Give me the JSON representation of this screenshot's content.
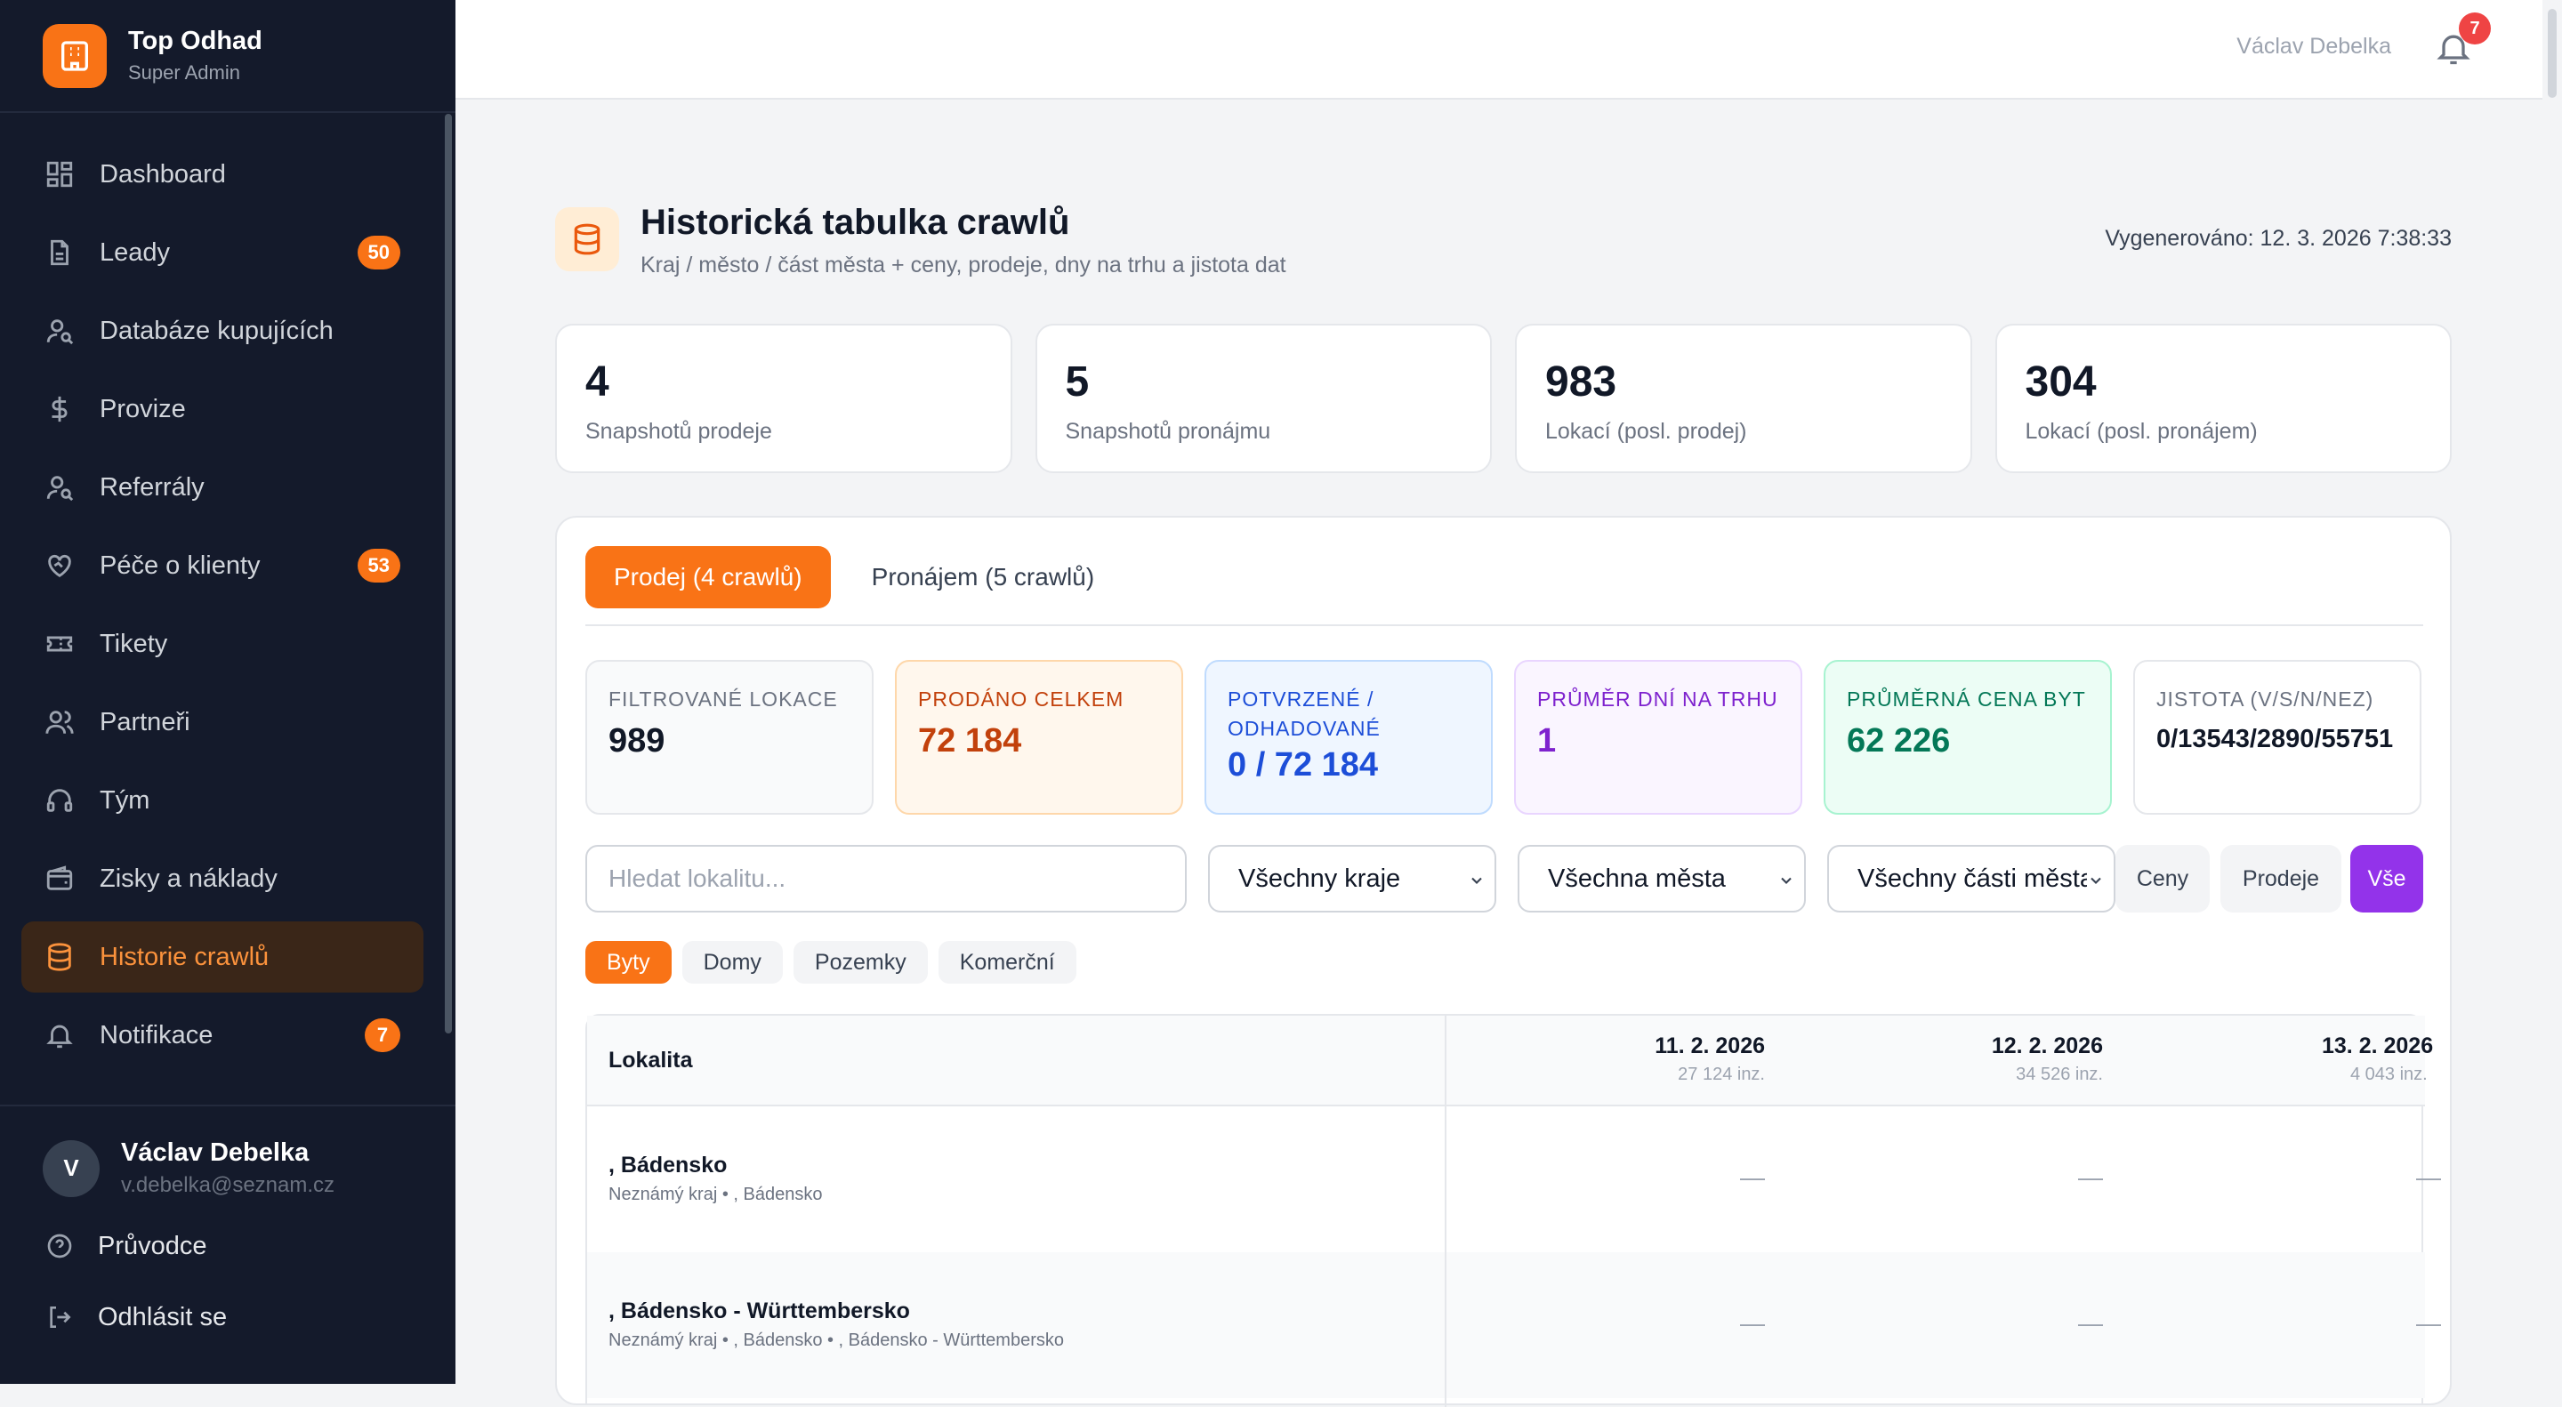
{
  "brand": {
    "title": "Top Odhad",
    "subtitle": "Super Admin"
  },
  "sidebar": {
    "items": [
      {
        "label": "Dashboard",
        "icon": "dashboard-icon"
      },
      {
        "label": "Leady",
        "icon": "document-icon",
        "badge": "50"
      },
      {
        "label": "Databáze kupujících",
        "icon": "user-search-icon"
      },
      {
        "label": "Provize",
        "icon": "dollar-icon"
      },
      {
        "label": "Referrály",
        "icon": "user-search-icon"
      },
      {
        "label": "Péče o klienty",
        "icon": "heart-handshake-icon",
        "badge": "53"
      },
      {
        "label": "Tikety",
        "icon": "ticket-icon"
      },
      {
        "label": "Partneři",
        "icon": "users-icon"
      },
      {
        "label": "Tým",
        "icon": "headset-icon"
      },
      {
        "label": "Zisky a náklady",
        "icon": "wallet-icon"
      },
      {
        "label": "Historie crawlů",
        "icon": "database-icon",
        "active": true
      },
      {
        "label": "Notifikace",
        "icon": "bell-icon",
        "badge": "7"
      }
    ]
  },
  "user": {
    "initial": "V",
    "name": "Václav Debelka",
    "email": "v.debelka@seznam.cz",
    "guide_label": "Průvodce",
    "logout_label": "Odhlásit se"
  },
  "header": {
    "user_name": "Václav Debelka",
    "notification_count": "7"
  },
  "page": {
    "title": "Historická tabulka crawlů",
    "subtitle": "Kraj / město / část města + ceny, prodeje, dny na trhu a jistota dat",
    "generated": "Vygenerováno: 12. 3. 2026 7:38:33"
  },
  "stats": [
    {
      "value": "4",
      "label": "Snapshotů prodeje"
    },
    {
      "value": "5",
      "label": "Snapshotů pronájmu"
    },
    {
      "value": "983",
      "label": "Lokací (posl. prodej)"
    },
    {
      "value": "304",
      "label": "Lokací (posl. pronájem)"
    }
  ],
  "tabs": [
    {
      "label": "Prodej (4 crawlů)",
      "active": true
    },
    {
      "label": "Pronájem (5 crawlů)",
      "active": false
    }
  ],
  "metrics": [
    {
      "label": "Filtrované lokace",
      "value": "989"
    },
    {
      "label": "Prodáno celkem",
      "value": "72 184"
    },
    {
      "label": "Potvrzené / odhadované",
      "value": "0 / 72 184"
    },
    {
      "label": "Průměr dní na trhu",
      "value": "1"
    },
    {
      "label": "Průměrná cena byt",
      "value": "62 226"
    },
    {
      "label": "Jistota (V/S/N/NEZ)",
      "value": "0/13543/2890/55751"
    }
  ],
  "filters": {
    "search_placeholder": "Hledat lokalitu...",
    "region": "Všechny kraje",
    "city": "Všechna města",
    "district": "Všechny části města",
    "segments": [
      {
        "label": "Ceny",
        "active": false
      },
      {
        "label": "Prodeje",
        "active": false
      },
      {
        "label": "Vše",
        "active": true
      }
    ]
  },
  "chips": [
    {
      "label": "Byty",
      "active": true
    },
    {
      "label": "Domy",
      "active": false
    },
    {
      "label": "Pozemky",
      "active": false
    },
    {
      "label": "Komerční",
      "active": false
    }
  ],
  "table": {
    "location_header": "Lokalita",
    "dates": [
      {
        "date": "11. 2. 2026",
        "count": "27 124 inz."
      },
      {
        "date": "12. 2. 2026",
        "count": "34 526 inz."
      },
      {
        "date": "13. 2. 2026",
        "count": "4 043 inz."
      }
    ],
    "rows": [
      {
        "name": ", Bádensko",
        "path": "Neznámý kraj • , Bádensko",
        "cells": [
          "—",
          "—",
          "—"
        ]
      },
      {
        "name": ", Bádensko - Württembersko",
        "path": "Neznámý kraj • , Bádensko • , Bádensko - Württembersko",
        "cells": [
          "—",
          "—",
          "—"
        ]
      }
    ]
  },
  "colors": {
    "accent": "#f97316",
    "sidebar_bg": "#141a2b",
    "purple": "#9333ea"
  }
}
